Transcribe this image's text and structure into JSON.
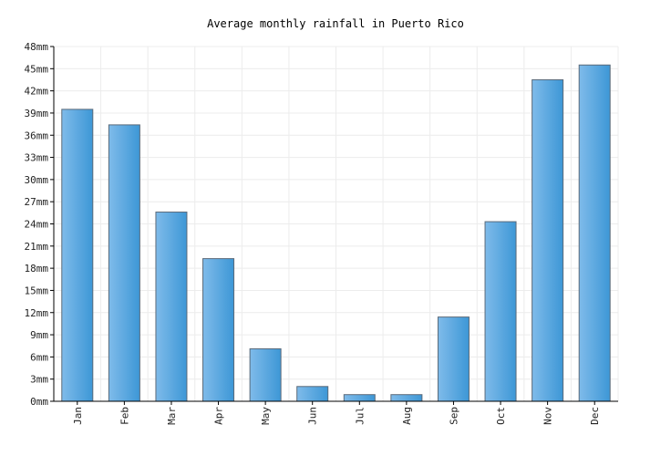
{
  "chart_data": {
    "type": "bar",
    "title": "Average monthly rainfall in Puerto Rico",
    "xlabel": "",
    "ylabel": "",
    "categories": [
      "Jan",
      "Feb",
      "Mar",
      "Apr",
      "May",
      "Jun",
      "Jul",
      "Aug",
      "Sep",
      "Oct",
      "Nov",
      "Dec"
    ],
    "values": [
      39.5,
      37.4,
      25.6,
      19.3,
      7.1,
      2.0,
      0.9,
      0.9,
      11.4,
      24.3,
      43.5,
      45.5
    ],
    "ylim": [
      0,
      48
    ],
    "yticks": [
      0,
      3,
      6,
      9,
      12,
      15,
      18,
      21,
      24,
      27,
      30,
      33,
      36,
      39,
      42,
      45,
      48
    ],
    "y_unit": "mm",
    "grid": true,
    "bar_color_light": "#7fbbea",
    "bar_color_dark": "#3d97d6"
  }
}
